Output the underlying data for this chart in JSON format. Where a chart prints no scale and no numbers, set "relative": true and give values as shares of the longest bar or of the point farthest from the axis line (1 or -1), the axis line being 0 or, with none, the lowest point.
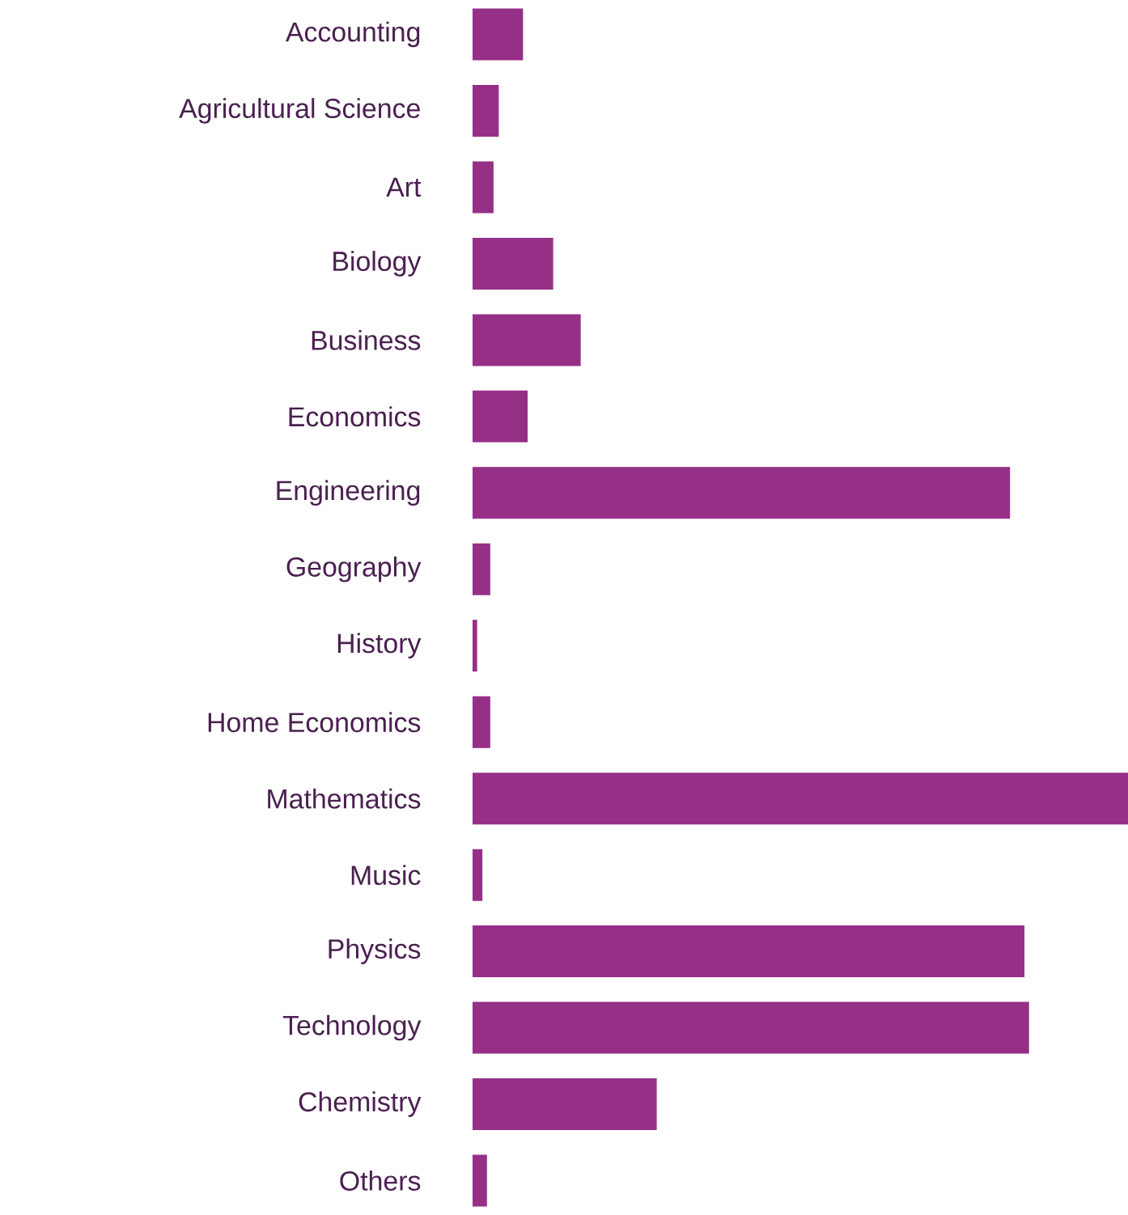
{
  "chart_data": {
    "type": "bar",
    "orientation": "horizontal",
    "relative": true,
    "color": "#963087",
    "categories": [
      "Accounting",
      "Agricultural Science",
      "Art",
      "Biology",
      "Business",
      "Economics",
      "Engineering",
      "Geography",
      "History",
      "Home Economics",
      "Mathematics",
      "Music",
      "Physics",
      "Technology",
      "Chemistry",
      "Others"
    ],
    "values": [
      0.077,
      0.04,
      0.032,
      0.123,
      0.165,
      0.084,
      0.82,
      0.027,
      0.007,
      0.027,
      1,
      0.015,
      0.842,
      0.849,
      0.281,
      0.022
    ]
  }
}
